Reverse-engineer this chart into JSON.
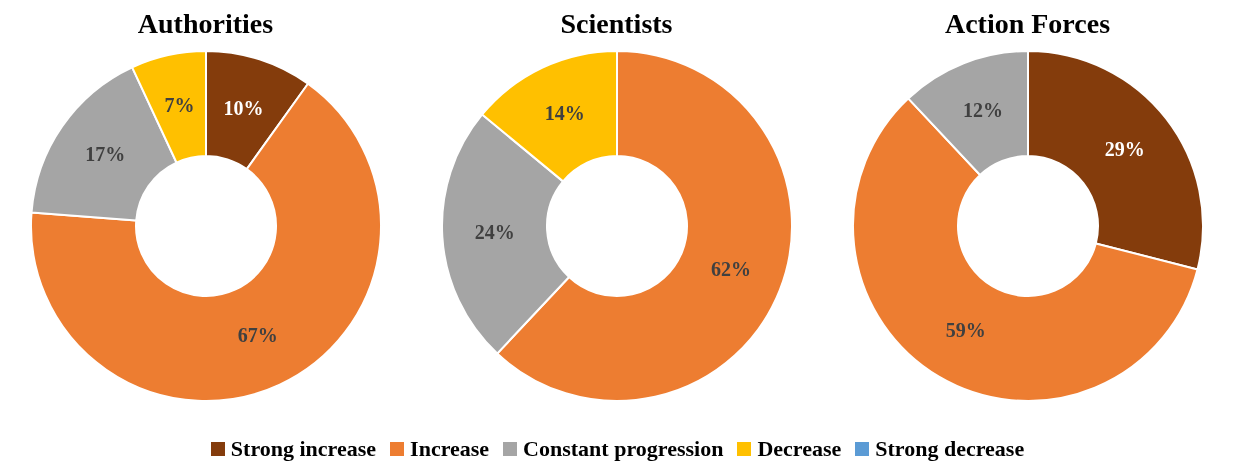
{
  "chart_data": [
    {
      "type": "donut",
      "title": "Authorities",
      "categories": [
        "Strong increase",
        "Increase",
        "Constant progression",
        "Decrease",
        "Strong decrease"
      ],
      "values": [
        10,
        67,
        17,
        7,
        0
      ],
      "colors": [
        "#843c0c",
        "#ed7d31",
        "#a5a5a5",
        "#ffc000",
        "#5b9bd5"
      ],
      "value_labels": [
        "10%",
        "67%",
        "17%",
        "7%",
        null
      ],
      "legend": "bottom"
    },
    {
      "type": "donut",
      "title": "Scientists",
      "categories": [
        null,
        null,
        null,
        null,
        null
      ],
      "values": [
        0,
        62,
        24,
        14,
        0
      ],
      "colors": [
        "#843c0c",
        "#ed7d31",
        "#a5a5a5",
        "#ffc000",
        "#5b9bd5"
      ],
      "value_labels": [
        null,
        "62%",
        "24%",
        "14%",
        null
      ]
    },
    {
      "type": "donut",
      "title": "Action Forces",
      "categories": [
        null,
        null,
        null,
        null,
        null
      ],
      "values": [
        29,
        59,
        12,
        0,
        0
      ],
      "colors": [
        "#843c0c",
        "#ed7d31",
        "#a5a5a5",
        "#ffc000",
        "#5b9bd5"
      ],
      "value_labels": [
        "29%",
        "59%",
        "12%",
        null,
        null
      ]
    }
  ]
}
